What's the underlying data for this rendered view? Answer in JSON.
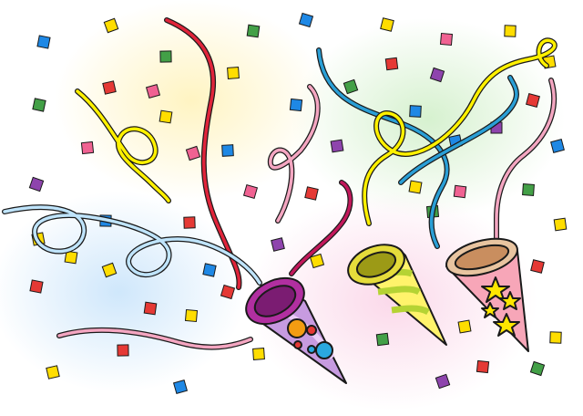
{
  "scene": {
    "background": "#ffffff",
    "outline": "#1a1a1a",
    "glows": [
      {
        "name": "yellow-glow",
        "color": "#fff4c2"
      },
      {
        "name": "green-glow",
        "color": "#d6f1cf"
      },
      {
        "name": "blue-glow",
        "color": "#cfe7fb"
      },
      {
        "name": "pink-glow",
        "color": "#fbd9ea"
      }
    ],
    "confetti_palette": [
      "#ffdd00",
      "#e53935",
      "#1e88e5",
      "#43a047",
      "#8e44ad",
      "#f06292"
    ],
    "streamer_colors": {
      "red": "#e0243a",
      "pink": "#f4a6c1",
      "yellow": "#fff100",
      "blue": "#2a9fd6",
      "light-blue": "#bfe4fb"
    },
    "poppers": [
      {
        "name": "purple-popper",
        "body": "#c79be0",
        "rim": "#b12fa0",
        "decoration": "dots",
        "decoration_colors": [
          "#f39c12",
          "#2aa8e0",
          "#e53935"
        ]
      },
      {
        "name": "yellow-popper",
        "body": "#fff36b",
        "rim": "#c9c21a",
        "decoration": "stripes",
        "decoration_colors": [
          "#b5d334"
        ]
      },
      {
        "name": "pink-popper",
        "body": "#f7a6b8",
        "rim": "#e3b48a",
        "decoration": "stars",
        "decoration_colors": [
          "#ffe600"
        ]
      }
    ]
  }
}
